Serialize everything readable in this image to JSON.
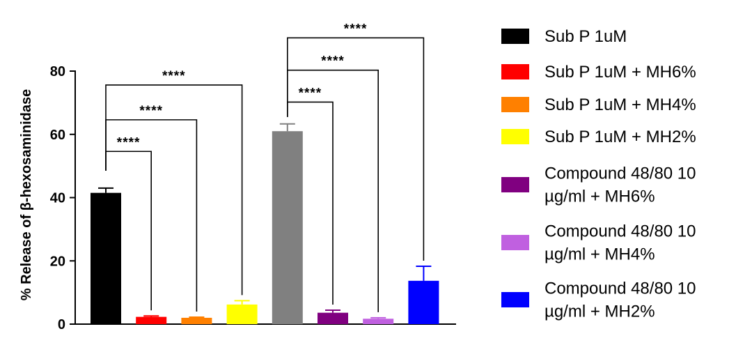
{
  "chart_data": {
    "type": "bar",
    "categories": [
      "Sub P 1uM",
      "Sub P 1uM  + MH6%",
      "Sub P 1uM  + MH4%",
      "Sub P 1uM  + MH2%",
      "",
      "Compound 48/80 10 µg/ml + MH6%",
      "Compound 48/80 10 µg/ml + MH4%",
      "Compound 48/80 10 µg/ml + MH2%"
    ],
    "values": [
      41.5,
      2.3,
      2.0,
      6.2,
      61.0,
      3.6,
      1.7,
      13.7
    ],
    "errors": [
      1.5,
      0.3,
      0.2,
      1.2,
      2.3,
      0.8,
      0.3,
      4.6
    ],
    "colors": [
      "#000000",
      "#ff0000",
      "#ff8000",
      "#ffff00",
      "#808080",
      "#800080",
      "#c060e0",
      "#0000ff"
    ],
    "ylabel": "% Release of β-hexosaminidase",
    "ylim": [
      0,
      80
    ],
    "yticks": [
      0,
      20,
      40,
      60,
      80
    ],
    "significance": [
      {
        "from": 0,
        "to": 1,
        "label": "****"
      },
      {
        "from": 0,
        "to": 2,
        "label": "****"
      },
      {
        "from": 0,
        "to": 3,
        "label": "****"
      },
      {
        "from": 4,
        "to": 5,
        "label": "****"
      },
      {
        "from": 4,
        "to": 6,
        "label": "****"
      },
      {
        "from": 4,
        "to": 7,
        "label": "****"
      }
    ],
    "legend": [
      {
        "lines": [
          "Sub P 1uM"
        ],
        "color": "#000000"
      },
      {
        "lines": [
          "Sub P 1uM  + MH6%"
        ],
        "color": "#ff0000"
      },
      {
        "lines": [
          "Sub P 1uM  + MH4%"
        ],
        "color": "#ff8000"
      },
      {
        "lines": [
          "Sub P 1uM  + MH2%"
        ],
        "color": "#ffff00"
      },
      {
        "lines": [
          "Compound 48/80 10",
          "µg/ml + MH6%"
        ],
        "color": "#800080"
      },
      {
        "lines": [
          "Compound 48/80 10",
          "µg/ml + MH4%"
        ],
        "color": "#c060e0"
      },
      {
        "lines": [
          "Compound 48/80 10",
          "µg/ml + MH2%"
        ],
        "color": "#0000ff"
      }
    ],
    "legend_position": "right",
    "grid": false
  }
}
